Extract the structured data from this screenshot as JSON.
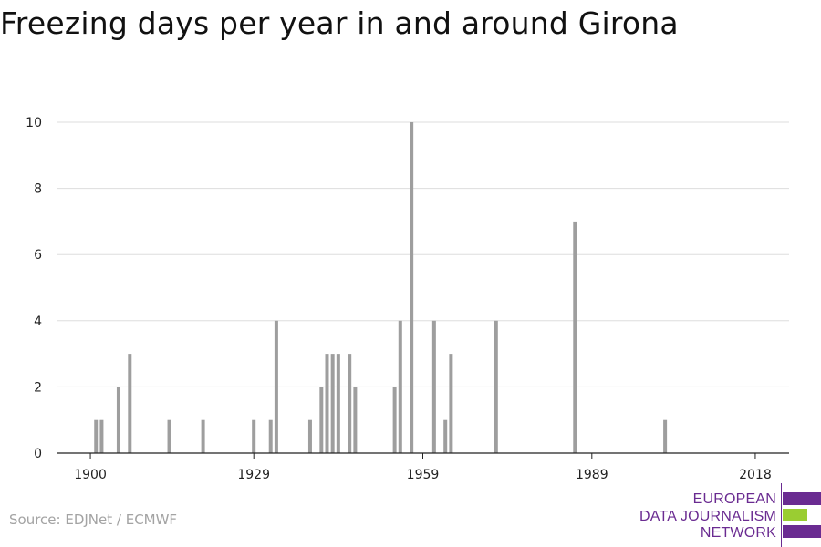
{
  "title": "Freezing days per year in and around Girona",
  "source": "Source: EDJNet / ECMWF",
  "logo": {
    "lines": [
      "EUROPEAN",
      "DATA JOURNALISM",
      "NETWORK"
    ],
    "colors": [
      "#6a2b91",
      "#9acd32",
      "#6a2b91"
    ]
  },
  "colors": {
    "bar": "#9e9e9e",
    "grid": "#dddddd",
    "axis": "#222222",
    "logo_purple": "#6a2b91",
    "logo_green": "#9acd32"
  },
  "chart_data": {
    "type": "bar",
    "xlim": [
      1894,
      2024
    ],
    "ylim": [
      0,
      10
    ],
    "xticks": [
      1900,
      1929,
      1959,
      1989,
      2018
    ],
    "yticks": [
      0,
      2,
      4,
      6,
      8,
      10
    ],
    "grid": true,
    "x": [
      1901,
      1902,
      1905,
      1907,
      1914,
      1920,
      1929,
      1932,
      1933,
      1939,
      1941,
      1942,
      1943,
      1944,
      1946,
      1947,
      1954,
      1955,
      1957,
      1961,
      1963,
      1964,
      1972,
      1986,
      2002
    ],
    "values": [
      1,
      1,
      2,
      3,
      1,
      1,
      1,
      1,
      4,
      1,
      2,
      3,
      3,
      3,
      3,
      2,
      2,
      4,
      10,
      4,
      1,
      3,
      4,
      7,
      1
    ]
  }
}
